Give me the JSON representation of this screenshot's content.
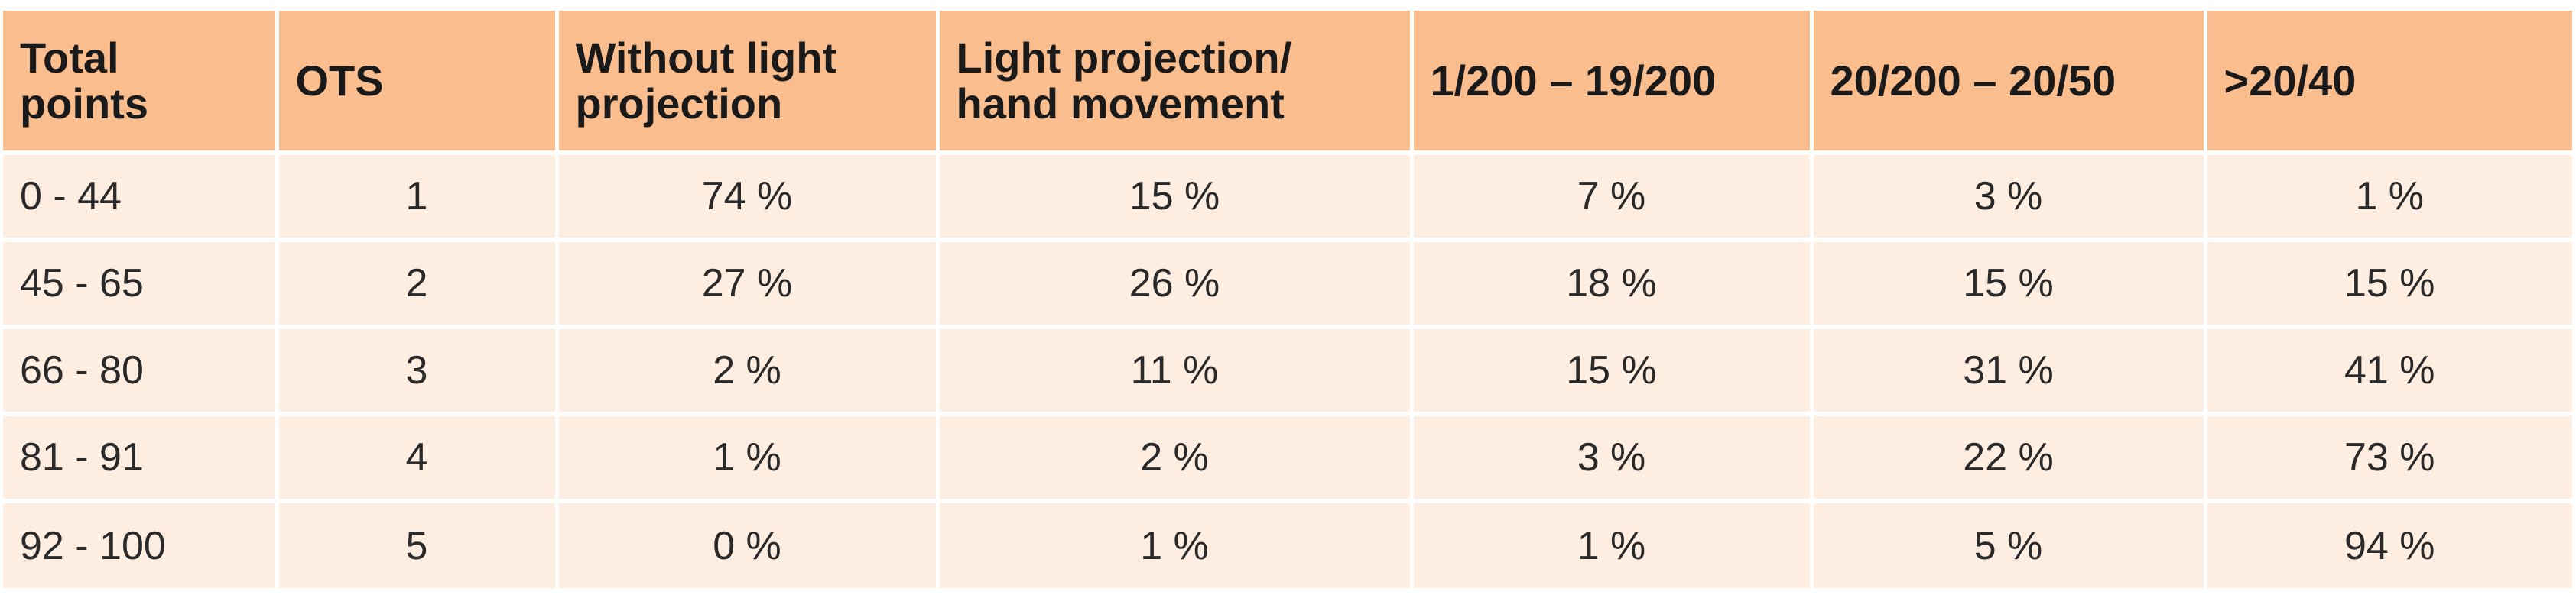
{
  "table": {
    "headers": [
      "Total points",
      "OTS",
      "Without light projection",
      "Light projection/ hand movement",
      "1/200 – 19/200",
      "20/200 – 20/50",
      ">20/40"
    ],
    "rows": [
      [
        "0 - 44",
        "1",
        "74 %",
        "15 %",
        "7 %",
        "3 %",
        "1 %"
      ],
      [
        "45 - 65",
        "2",
        "27 %",
        "26 %",
        "18 %",
        "15 %",
        "15 %"
      ],
      [
        "66 - 80",
        "3",
        "2 %",
        "11 %",
        "15 %",
        "31 %",
        "41 %"
      ],
      [
        "81 - 91",
        "4",
        "1 %",
        "2 %",
        "3 %",
        "22 %",
        "73 %"
      ],
      [
        "92 - 100",
        "5",
        "0 %",
        "1 %",
        "1 %",
        "5 %",
        "94 %"
      ]
    ]
  },
  "colors": {
    "header_bg": "#f9bd8e",
    "row_bg": "#feeee1",
    "grid_line": "#ffffff"
  }
}
